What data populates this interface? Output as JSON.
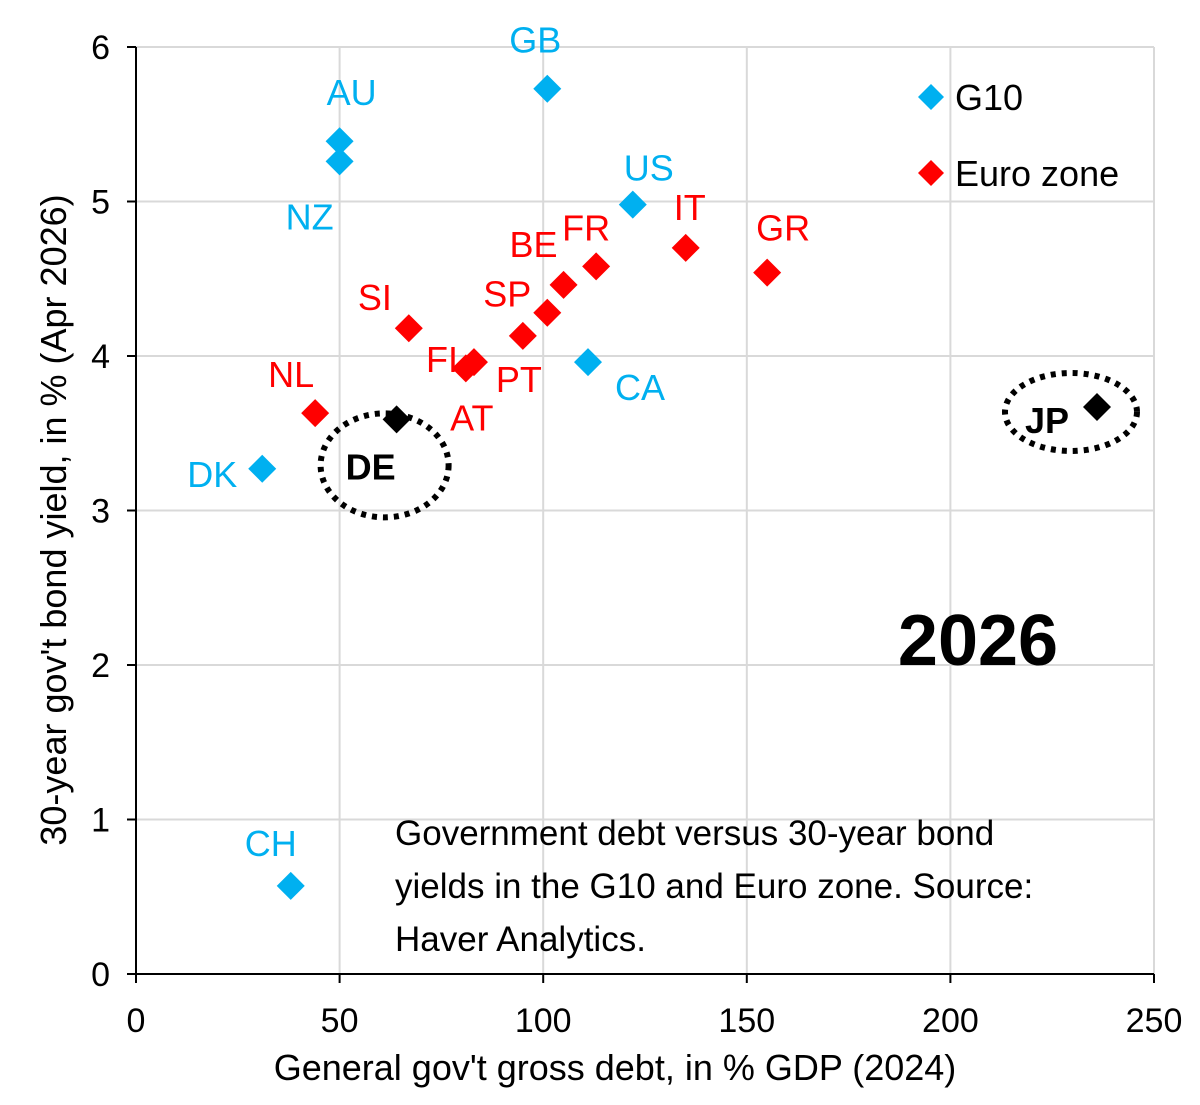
{
  "chart_data": {
    "type": "scatter",
    "xlabel": "General gov't gross debt, in % GDP (2024)",
    "ylabel": "30-year gov't bond yield, in % (Apr 2026)",
    "xlim": [
      0,
      250
    ],
    "ylim": [
      0,
      6
    ],
    "x_ticks": [
      "0",
      "50",
      "100",
      "150",
      "200",
      "250"
    ],
    "y_ticks": [
      "0",
      "1",
      "2",
      "3",
      "4",
      "5",
      "6"
    ],
    "grid": "vertical and horizontal gridlines",
    "legend_position": "top-right",
    "year_label": "2026",
    "note": [
      "Government debt versus 30-year bond",
      "yields in the G10 and Euro zone. Source:",
      "Haver Analytics."
    ],
    "highlight_circles": [
      "DE",
      "JP"
    ],
    "series": [
      {
        "name": "G10",
        "color": "#00B0F0",
        "points": [
          {
            "label": "GB",
            "x": 101,
            "y": 5.73
          },
          {
            "label": "AU",
            "x": 50,
            "y": 5.39
          },
          {
            "label": "NZ",
            "x": 50,
            "y": 5.26
          },
          {
            "label": "US",
            "x": 122,
            "y": 4.98
          },
          {
            "label": "CA",
            "x": 111,
            "y": 3.96
          },
          {
            "label": "DK",
            "x": 31,
            "y": 3.27
          },
          {
            "label": "CH",
            "x": 38,
            "y": 0.57
          }
        ]
      },
      {
        "name": "Euro zone",
        "color": "#FF0000",
        "points": [
          {
            "label": "IT",
            "x": 135,
            "y": 4.7
          },
          {
            "label": "GR",
            "x": 155,
            "y": 4.54
          },
          {
            "label": "FR",
            "x": 113,
            "y": 4.58
          },
          {
            "label": "BE",
            "x": 105,
            "y": 4.46
          },
          {
            "label": "SP",
            "x": 101,
            "y": 4.28
          },
          {
            "label": "PT",
            "x": 95,
            "y": 4.13
          },
          {
            "label": "SI",
            "x": 67,
            "y": 4.18
          },
          {
            "label": "FI",
            "x": 83,
            "y": 3.96
          },
          {
            "label": "AT",
            "x": 81,
            "y": 3.92
          },
          {
            "label": "NL",
            "x": 44,
            "y": 3.63
          }
        ]
      },
      {
        "color": "#000000",
        "points": [
          {
            "label": "DE",
            "x": 64,
            "y": 3.59
          },
          {
            "label": "JP",
            "x": 236,
            "y": 3.67
          }
        ]
      }
    ]
  }
}
